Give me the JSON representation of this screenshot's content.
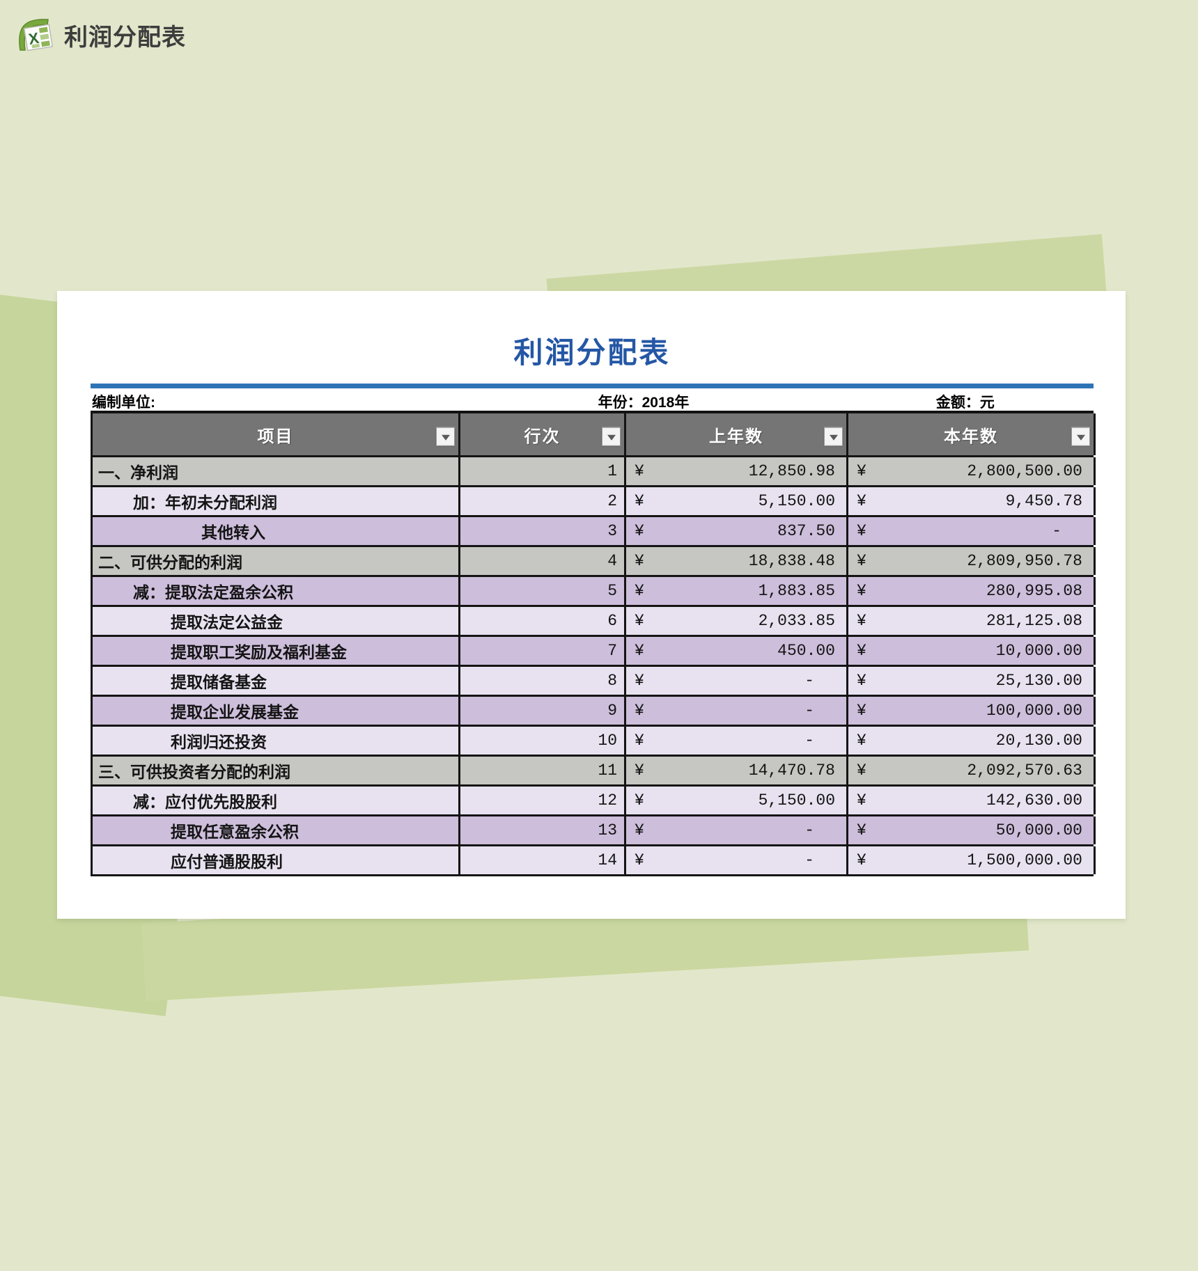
{
  "page_header": {
    "title": "利润分配表"
  },
  "sheet": {
    "title": "利润分配表",
    "info": {
      "left": "编制单位:",
      "middle": "年份：2018年",
      "right": "金额：元"
    },
    "columns": [
      {
        "label": "项目"
      },
      {
        "label": "行次"
      },
      {
        "label": "上年数"
      },
      {
        "label": "本年数"
      }
    ],
    "currency_symbol": "¥",
    "rows": [
      {
        "label": "一、净利润",
        "indent": 0,
        "line_no": "1",
        "prev": "12,850.98",
        "cur": "2,800,500.00",
        "tone": "gray"
      },
      {
        "label": "加：年初未分配利润",
        "indent": 1,
        "line_no": "2",
        "prev": "5,150.00",
        "cur": "9,450.78",
        "tone": "light"
      },
      {
        "label": "其他转入",
        "indent": 3,
        "line_no": "3",
        "prev": "837.50",
        "cur": "-",
        "tone": "medium"
      },
      {
        "label": "二、可供分配的利润",
        "indent": 0,
        "line_no": "4",
        "prev": "18,838.48",
        "cur": "2,809,950.78",
        "tone": "gray"
      },
      {
        "label": "减：提取法定盈余公积",
        "indent": 1,
        "line_no": "5",
        "prev": "1,883.85",
        "cur": "280,995.08",
        "tone": "medium"
      },
      {
        "label": "提取法定公益金",
        "indent": 2,
        "line_no": "6",
        "prev": "2,033.85",
        "cur": "281,125.08",
        "tone": "light"
      },
      {
        "label": "提取职工奖励及福利基金",
        "indent": 2,
        "line_no": "7",
        "prev": "450.00",
        "cur": "10,000.00",
        "tone": "medium"
      },
      {
        "label": "提取储备基金",
        "indent": 2,
        "line_no": "8",
        "prev": "-",
        "cur": "25,130.00",
        "tone": "light"
      },
      {
        "label": "提取企业发展基金",
        "indent": 2,
        "line_no": "9",
        "prev": "-",
        "cur": "100,000.00",
        "tone": "medium"
      },
      {
        "label": "利润归还投资",
        "indent": 2,
        "line_no": "10",
        "prev": "-",
        "cur": "20,130.00",
        "tone": "light"
      },
      {
        "label": "三、可供投资者分配的利润",
        "indent": 0,
        "line_no": "11",
        "prev": "14,470.78",
        "cur": "2,092,570.63",
        "tone": "gray"
      },
      {
        "label": "减：应付优先股股利",
        "indent": 1,
        "line_no": "12",
        "prev": "5,150.00",
        "cur": "142,630.00",
        "tone": "light"
      },
      {
        "label": "提取任意盈余公积",
        "indent": 2,
        "line_no": "13",
        "prev": "-",
        "cur": "50,000.00",
        "tone": "medium"
      },
      {
        "label": "应付普通股股利",
        "indent": 2,
        "line_no": "14",
        "prev": "-",
        "cur": "1,500,000.00",
        "tone": "light"
      }
    ]
  },
  "colors": {
    "background": "#e2e7cb",
    "accent_green_dark": "#ccd8a4",
    "accent_green_mid": "#c6d59c",
    "title_blue": "#2457a5",
    "rule_blue": "#2e74b5",
    "header_gray": "#757575",
    "row_gray": "#c6c6c2",
    "row_light": "#e8e2f0",
    "row_medium": "#cdbedb"
  }
}
